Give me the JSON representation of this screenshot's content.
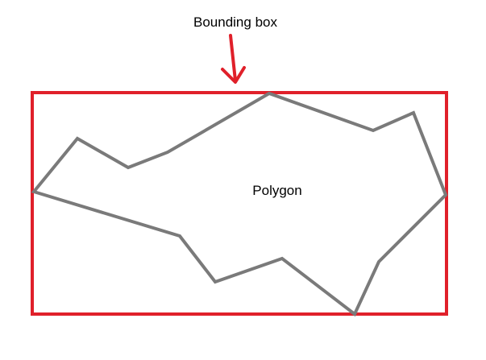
{
  "diagram": {
    "bounding_box_label": "Bounding box",
    "polygon_label": "Polygon"
  },
  "colors": {
    "bounding_box": "#e0202a",
    "arrow": "#e0202a",
    "polygon": "#7a7a7a",
    "label_text": "#000000",
    "background": "#ffffff"
  }
}
